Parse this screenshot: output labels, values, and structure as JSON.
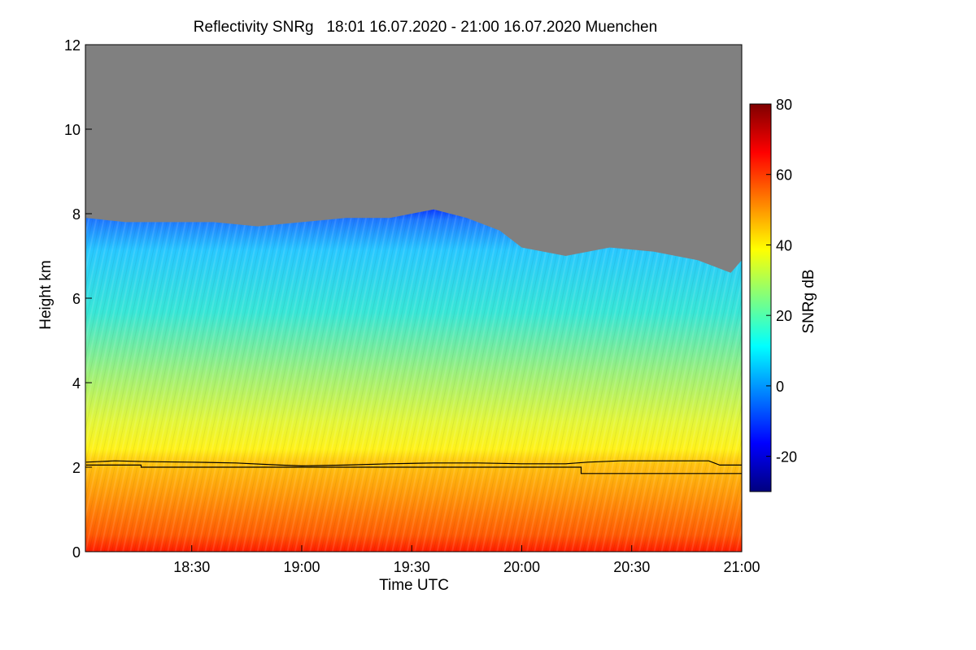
{
  "chart_data": {
    "type": "heatmap",
    "title": "Reflectivity SNRg   18:01 16.07.2020 - 21:00 16.07.2020 Muenchen",
    "xlabel": "Time UTC",
    "ylabel": "Height km",
    "xlim_hours": [
      18.0167,
      21.0
    ],
    "ylim": [
      0,
      12
    ],
    "x_ticks": [
      {
        "value": 18.5,
        "label": "18:30"
      },
      {
        "value": 19.0,
        "label": "19:00"
      },
      {
        "value": 19.5,
        "label": "19:30"
      },
      {
        "value": 20.0,
        "label": "20:00"
      },
      {
        "value": 20.5,
        "label": "20:30"
      },
      {
        "value": 21.0,
        "label": "21:00"
      }
    ],
    "y_ticks": [
      0,
      2,
      4,
      6,
      8,
      10,
      12
    ],
    "colorbar": {
      "label": "SNRg dB",
      "range": [
        -30,
        80
      ],
      "ticks": [
        -20,
        0,
        20,
        40,
        60,
        80
      ]
    },
    "no_data_color": "#808080",
    "echo_top_km": {
      "x_hours": [
        18.02,
        18.2,
        18.4,
        18.6,
        18.8,
        19.0,
        19.2,
        19.4,
        19.5,
        19.6,
        19.75,
        19.9,
        20.0,
        20.2,
        20.4,
        20.6,
        20.8,
        20.95,
        21.0
      ],
      "heights": [
        7.9,
        7.8,
        7.8,
        7.8,
        7.7,
        7.8,
        7.9,
        7.9,
        8.0,
        8.1,
        7.9,
        7.6,
        7.2,
        7.0,
        7.2,
        7.1,
        6.9,
        6.6,
        6.9
      ]
    },
    "surface_series": [
      {
        "name": "upper_line",
        "x_hours": [
          18.02,
          18.15,
          18.3,
          18.5,
          18.7,
          18.9,
          19.0,
          19.2,
          19.4,
          19.6,
          19.8,
          20.0,
          20.2,
          20.3,
          20.45,
          20.6,
          20.85,
          20.9,
          21.0
        ],
        "heights": [
          2.12,
          2.15,
          2.13,
          2.12,
          2.1,
          2.05,
          2.03,
          2.05,
          2.08,
          2.1,
          2.1,
          2.08,
          2.08,
          2.12,
          2.15,
          2.15,
          2.15,
          2.05,
          2.05
        ]
      },
      {
        "name": "lower_line",
        "x_hours": [
          18.02,
          18.27,
          18.27,
          20.27,
          20.27,
          21.0
        ],
        "heights": [
          2.05,
          2.05,
          2.0,
          2.0,
          1.85,
          1.85
        ]
      }
    ],
    "colormap": [
      "#00007f",
      "#0000ff",
      "#007fff",
      "#00ffff",
      "#7fff7f",
      "#ffff00",
      "#ff7f00",
      "#ff0000",
      "#7f0000"
    ]
  }
}
